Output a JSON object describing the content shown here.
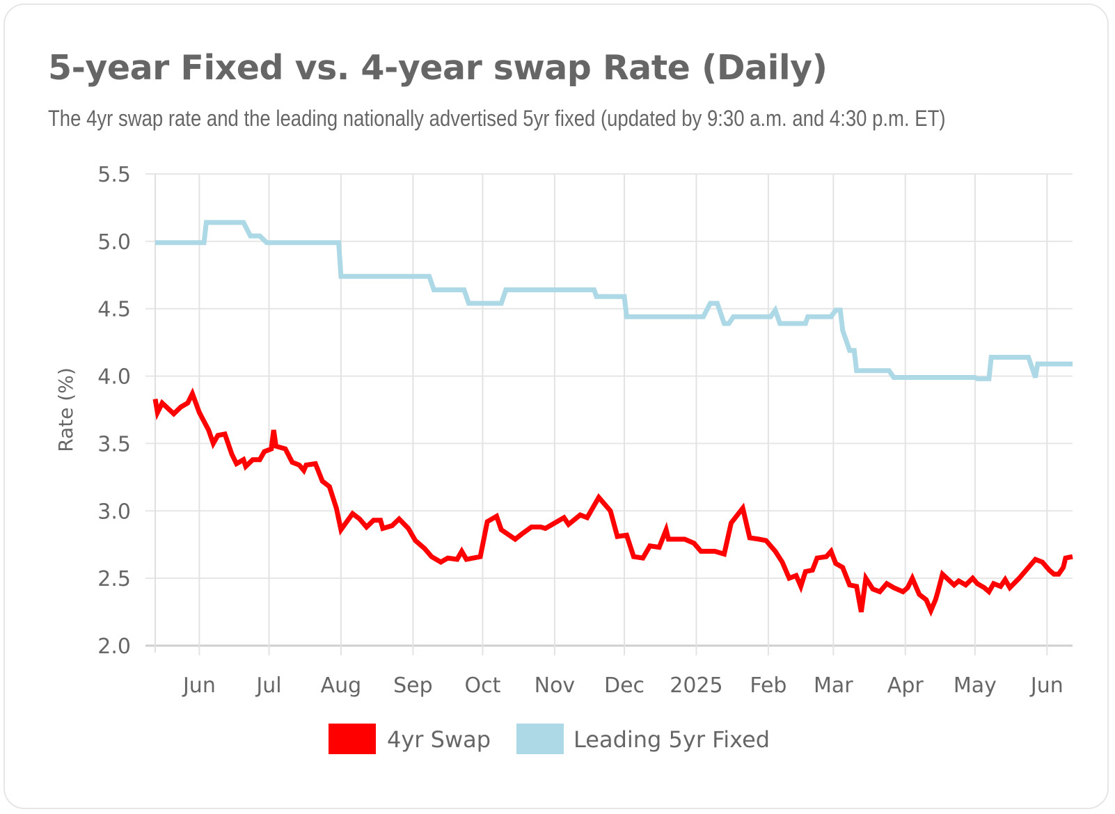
{
  "chart_data": {
    "type": "line",
    "title": "5-year Fixed vs. 4-year swap Rate (Daily)",
    "subtitle": "The 4yr swap rate and the leading nationally advertised 5yr fixed (updated by 9:30 a.m. and 4:30 p.m. ET)",
    "xlabel": "",
    "ylabel": "Rate (%)",
    "xlim": [
      "2024-05-13",
      "2025-06-12"
    ],
    "ylim": [
      2.0,
      5.5
    ],
    "yticks": [
      "2.0",
      "2.5",
      "3.0",
      "3.5",
      "4.0",
      "4.5",
      "5.0",
      "5.5"
    ],
    "xticks": [
      {
        "date": "2024-06-01",
        "label": "Jun"
      },
      {
        "date": "2024-07-01",
        "label": "Jul"
      },
      {
        "date": "2024-08-01",
        "label": "Aug"
      },
      {
        "date": "2024-09-01",
        "label": "Sep"
      },
      {
        "date": "2024-10-01",
        "label": "Oct"
      },
      {
        "date": "2024-11-01",
        "label": "Nov"
      },
      {
        "date": "2024-12-01",
        "label": "Dec"
      },
      {
        "date": "2025-01-01",
        "label": "2025"
      },
      {
        "date": "2025-02-01",
        "label": "Feb"
      },
      {
        "date": "2025-03-01",
        "label": "Mar"
      },
      {
        "date": "2025-04-01",
        "label": "Apr"
      },
      {
        "date": "2025-05-01",
        "label": "May"
      },
      {
        "date": "2025-06-01",
        "label": "Jun"
      }
    ],
    "grid": true,
    "legend_position": "bottom",
    "series": [
      {
        "name": "4yr Swap",
        "color": "#ff0000",
        "points": [
          [
            "2024-05-13",
            3.83
          ],
          [
            "2024-05-14",
            3.73
          ],
          [
            "2024-05-16",
            3.8
          ],
          [
            "2024-05-21",
            3.72
          ],
          [
            "2024-05-24",
            3.77
          ],
          [
            "2024-05-27",
            3.8
          ],
          [
            "2024-05-29",
            3.87
          ],
          [
            "2024-06-01",
            3.73
          ],
          [
            "2024-06-05",
            3.6
          ],
          [
            "2024-06-07",
            3.5
          ],
          [
            "2024-06-09",
            3.56
          ],
          [
            "2024-06-12",
            3.57
          ],
          [
            "2024-06-15",
            3.42
          ],
          [
            "2024-06-17",
            3.35
          ],
          [
            "2024-06-20",
            3.38
          ],
          [
            "2024-06-21",
            3.33
          ],
          [
            "2024-06-24",
            3.38
          ],
          [
            "2024-06-27",
            3.38
          ],
          [
            "2024-06-29",
            3.44
          ],
          [
            "2024-07-02",
            3.46
          ],
          [
            "2024-07-03",
            3.6
          ],
          [
            "2024-07-04",
            3.48
          ],
          [
            "2024-07-08",
            3.46
          ],
          [
            "2024-07-11",
            3.36
          ],
          [
            "2024-07-14",
            3.34
          ],
          [
            "2024-07-16",
            3.3
          ],
          [
            "2024-07-17",
            3.34
          ],
          [
            "2024-07-21",
            3.35
          ],
          [
            "2024-07-24",
            3.22
          ],
          [
            "2024-07-27",
            3.18
          ],
          [
            "2024-07-30",
            3.02
          ],
          [
            "2024-08-01",
            2.86
          ],
          [
            "2024-08-06",
            2.98
          ],
          [
            "2024-08-09",
            2.94
          ],
          [
            "2024-08-12",
            2.88
          ],
          [
            "2024-08-15",
            2.93
          ],
          [
            "2024-08-18",
            2.93
          ],
          [
            "2024-08-19",
            2.87
          ],
          [
            "2024-08-23",
            2.89
          ],
          [
            "2024-08-26",
            2.94
          ],
          [
            "2024-08-30",
            2.87
          ],
          [
            "2024-09-02",
            2.78
          ],
          [
            "2024-09-06",
            2.72
          ],
          [
            "2024-09-09",
            2.66
          ],
          [
            "2024-09-13",
            2.62
          ],
          [
            "2024-09-16",
            2.65
          ],
          [
            "2024-09-20",
            2.64
          ],
          [
            "2024-09-22",
            2.7
          ],
          [
            "2024-09-24",
            2.64
          ],
          [
            "2024-09-30",
            2.66
          ],
          [
            "2024-10-03",
            2.92
          ],
          [
            "2024-10-07",
            2.96
          ],
          [
            "2024-10-09",
            2.86
          ],
          [
            "2024-10-15",
            2.79
          ],
          [
            "2024-10-18",
            2.83
          ],
          [
            "2024-10-22",
            2.88
          ],
          [
            "2024-10-26",
            2.88
          ],
          [
            "2024-10-28",
            2.87
          ],
          [
            "2024-10-31",
            2.9
          ],
          [
            "2024-11-05",
            2.95
          ],
          [
            "2024-11-07",
            2.9
          ],
          [
            "2024-11-12",
            2.97
          ],
          [
            "2024-11-15",
            2.95
          ],
          [
            "2024-11-20",
            3.1
          ],
          [
            "2024-11-25",
            3.0
          ],
          [
            "2024-11-28",
            2.81
          ],
          [
            "2024-12-02",
            2.82
          ],
          [
            "2024-12-05",
            2.66
          ],
          [
            "2024-12-09",
            2.65
          ],
          [
            "2024-12-12",
            2.74
          ],
          [
            "2024-12-16",
            2.73
          ],
          [
            "2024-12-19",
            2.86
          ],
          [
            "2024-12-20",
            2.79
          ],
          [
            "2024-12-27",
            2.79
          ],
          [
            "2024-12-31",
            2.76
          ],
          [
            "2025-01-03",
            2.7
          ],
          [
            "2025-01-09",
            2.7
          ],
          [
            "2025-01-13",
            2.68
          ],
          [
            "2025-01-16",
            2.91
          ],
          [
            "2025-01-21",
            3.02
          ],
          [
            "2025-01-24",
            2.8
          ],
          [
            "2025-01-28",
            2.79
          ],
          [
            "2025-01-31",
            2.78
          ],
          [
            "2025-02-04",
            2.7
          ],
          [
            "2025-02-07",
            2.62
          ],
          [
            "2025-02-10",
            2.5
          ],
          [
            "2025-02-13",
            2.52
          ],
          [
            "2025-02-15",
            2.44
          ],
          [
            "2025-02-17",
            2.55
          ],
          [
            "2025-02-20",
            2.56
          ],
          [
            "2025-02-22",
            2.65
          ],
          [
            "2025-02-26",
            2.66
          ],
          [
            "2025-02-28",
            2.7
          ],
          [
            "2025-03-02",
            2.61
          ],
          [
            "2025-03-05",
            2.58
          ],
          [
            "2025-03-08",
            2.45
          ],
          [
            "2025-03-11",
            2.44
          ],
          [
            "2025-03-13",
            2.25
          ],
          [
            "2025-03-15",
            2.5
          ],
          [
            "2025-03-18",
            2.42
          ],
          [
            "2025-03-21",
            2.4
          ],
          [
            "2025-03-24",
            2.46
          ],
          [
            "2025-03-27",
            2.43
          ],
          [
            "2025-03-31",
            2.4
          ],
          [
            "2025-04-02",
            2.43
          ],
          [
            "2025-04-04",
            2.5
          ],
          [
            "2025-04-07",
            2.38
          ],
          [
            "2025-04-10",
            2.34
          ],
          [
            "2025-04-12",
            2.26
          ],
          [
            "2025-04-14",
            2.34
          ],
          [
            "2025-04-15",
            2.4
          ],
          [
            "2025-04-17",
            2.53
          ],
          [
            "2025-04-22",
            2.45
          ],
          [
            "2025-04-24",
            2.48
          ],
          [
            "2025-04-27",
            2.45
          ],
          [
            "2025-04-30",
            2.5
          ],
          [
            "2025-05-02",
            2.46
          ],
          [
            "2025-05-05",
            2.43
          ],
          [
            "2025-05-07",
            2.4
          ],
          [
            "2025-05-09",
            2.46
          ],
          [
            "2025-05-12",
            2.44
          ],
          [
            "2025-05-14",
            2.49
          ],
          [
            "2025-05-16",
            2.43
          ],
          [
            "2025-05-20",
            2.5
          ],
          [
            "2025-05-24",
            2.58
          ],
          [
            "2025-05-27",
            2.64
          ],
          [
            "2025-05-30",
            2.62
          ],
          [
            "2025-06-02",
            2.56
          ],
          [
            "2025-06-04",
            2.53
          ],
          [
            "2025-06-06",
            2.53
          ],
          [
            "2025-06-08",
            2.58
          ],
          [
            "2025-06-09",
            2.65
          ],
          [
            "2025-06-12",
            2.66
          ]
        ]
      },
      {
        "name": "Leading 5yr Fixed",
        "color": "#add8e6",
        "points": [
          [
            "2024-05-13",
            4.99
          ],
          [
            "2024-06-03",
            4.99
          ],
          [
            "2024-06-04",
            5.14
          ],
          [
            "2024-06-20",
            5.14
          ],
          [
            "2024-06-23",
            5.04
          ],
          [
            "2024-06-27",
            5.04
          ],
          [
            "2024-06-30",
            4.99
          ],
          [
            "2024-07-31",
            4.99
          ],
          [
            "2024-08-01",
            4.74
          ],
          [
            "2024-09-08",
            4.74
          ],
          [
            "2024-09-10",
            4.64
          ],
          [
            "2024-09-23",
            4.64
          ],
          [
            "2024-09-25",
            4.54
          ],
          [
            "2024-10-09",
            4.54
          ],
          [
            "2024-10-11",
            4.64
          ],
          [
            "2024-11-18",
            4.64
          ],
          [
            "2024-11-19",
            4.59
          ],
          [
            "2024-12-01",
            4.59
          ],
          [
            "2024-12-02",
            4.44
          ],
          [
            "2025-01-04",
            4.44
          ],
          [
            "2025-01-07",
            4.54
          ],
          [
            "2025-01-10",
            4.54
          ],
          [
            "2025-01-13",
            4.39
          ],
          [
            "2025-01-15",
            4.39
          ],
          [
            "2025-01-17",
            4.44
          ],
          [
            "2025-02-02",
            4.44
          ],
          [
            "2025-02-04",
            4.49
          ],
          [
            "2025-02-06",
            4.39
          ],
          [
            "2025-02-17",
            4.39
          ],
          [
            "2025-02-18",
            4.44
          ],
          [
            "2025-02-28",
            4.44
          ],
          [
            "2025-03-02",
            4.49
          ],
          [
            "2025-03-04",
            4.49
          ],
          [
            "2025-03-05",
            4.34
          ],
          [
            "2025-03-08",
            4.19
          ],
          [
            "2025-03-10",
            4.19
          ],
          [
            "2025-03-11",
            4.04
          ],
          [
            "2025-03-25",
            4.04
          ],
          [
            "2025-03-27",
            3.99
          ],
          [
            "2025-05-01",
            3.99
          ],
          [
            "2025-05-02",
            3.98
          ],
          [
            "2025-05-07",
            3.98
          ],
          [
            "2025-05-08",
            4.14
          ],
          [
            "2025-05-24",
            4.14
          ],
          [
            "2025-05-27",
            3.99
          ],
          [
            "2025-05-28",
            4.09
          ],
          [
            "2025-06-12",
            4.09
          ]
        ]
      }
    ]
  }
}
